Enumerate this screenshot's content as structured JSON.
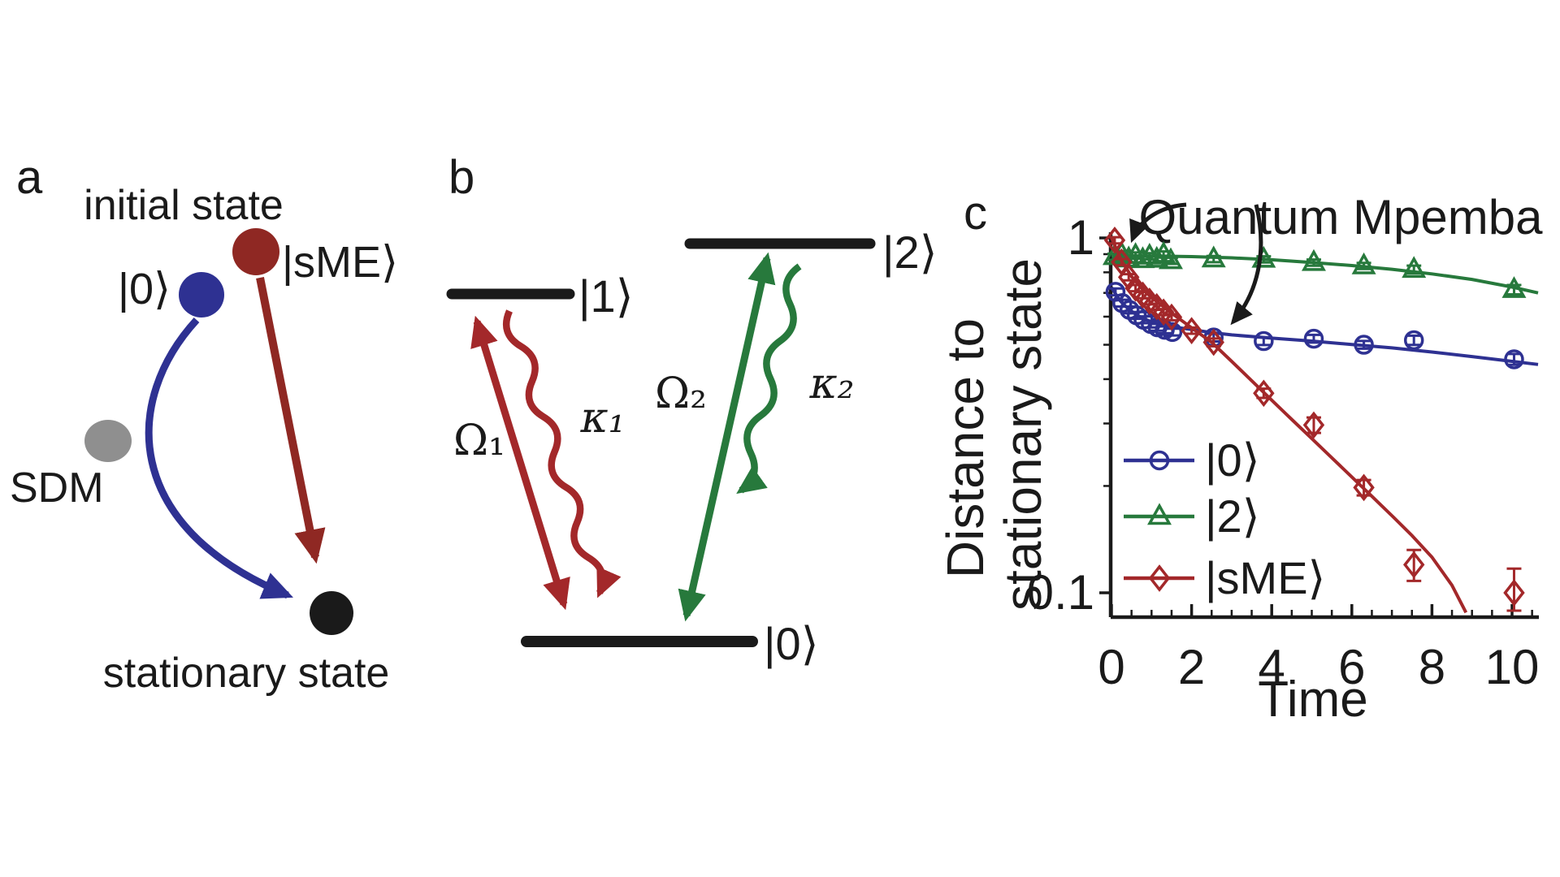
{
  "colors": {
    "blue": "#2e3192",
    "green": "#27793c",
    "red": "#a3282a",
    "dark_red": "#8f2823",
    "gray": "#8f8f8f",
    "black": "#1a1a1a"
  },
  "panel_a": {
    "label": "a",
    "initial_state": "initial state",
    "stationary_state": "stationary state",
    "sme": "|sME⟩",
    "ket0": "|0⟩",
    "sdm": "SDM"
  },
  "panel_b": {
    "label": "b",
    "level0": "|0⟩",
    "level1": "|1⟩",
    "level2": "|2⟩",
    "omega1": "Ω₁",
    "kappa1": "κ₁",
    "omega2": "Ω₂",
    "kappa2": "κ₂"
  },
  "panel_c": {
    "label": "c"
  },
  "chart_data": {
    "type": "line",
    "annotation": "Quantum Mpemba",
    "xlabel": "Time",
    "ylabel": "Distance to stationary state",
    "ylabel_lines": [
      "Distance to",
      "stationary state"
    ],
    "yscale": "log",
    "xlim": [
      0,
      10.65
    ],
    "ylim": [
      0.085,
      1.04
    ],
    "xticks": [
      0,
      2,
      4,
      6,
      8,
      10
    ],
    "x_minor_step": 0.5,
    "ytick_labels": [
      {
        "value": 1,
        "label": "1"
      },
      {
        "value": 0.1,
        "label": "0.1"
      }
    ],
    "y_minor": [
      0.9,
      0.8,
      0.7,
      0.6,
      0.5,
      0.4,
      0.3,
      0.2
    ],
    "grid": false,
    "legend_position": "inside bottom-left",
    "series": [
      {
        "name": "|0⟩",
        "marker": "circle",
        "color": "#2e3192",
        "points": {
          "t": [
            0.1,
            0.27,
            0.45,
            0.63,
            0.8,
            0.98,
            1.15,
            1.33,
            1.52,
            2.55,
            3.8,
            5.05,
            6.3,
            7.55,
            10.05
          ],
          "v": [
            0.705,
            0.655,
            0.627,
            0.605,
            0.588,
            0.572,
            0.56,
            0.551,
            0.543,
            0.524,
            0.512,
            0.52,
            0.5,
            0.515,
            0.455
          ],
          "err": [
            0.022,
            0.022,
            0.022,
            0.022,
            0.022,
            0.022,
            0.022,
            0.022,
            0.022,
            0.025,
            0.025,
            0.025,
            0.025,
            0.03,
            0.035
          ]
        },
        "line": {
          "t": [
            0,
            0.2,
            0.4,
            0.6,
            0.8,
            1.0,
            1.3,
            1.6,
            2.0,
            2.5,
            3.0,
            4.0,
            5.0,
            6.0,
            7.0,
            8.0,
            9.0,
            10.0,
            10.65
          ],
          "v": [
            0.725,
            0.668,
            0.634,
            0.61,
            0.592,
            0.58,
            0.568,
            0.56,
            0.552,
            0.541,
            0.533,
            0.522,
            0.512,
            0.501,
            0.49,
            0.477,
            0.463,
            0.449,
            0.44
          ]
        }
      },
      {
        "name": "|2⟩",
        "marker": "triangle",
        "color": "#27793c",
        "points": {
          "t": [
            0.08,
            0.25,
            0.43,
            0.6,
            0.78,
            0.95,
            1.13,
            1.3,
            1.48,
            2.55,
            3.8,
            5.05,
            6.3,
            7.55,
            10.05
          ],
          "v": [
            0.885,
            0.9,
            0.872,
            0.892,
            0.868,
            0.888,
            0.87,
            0.898,
            0.862,
            0.872,
            0.87,
            0.852,
            0.834,
            0.815,
            0.715
          ],
          "err": [
            0.02,
            0.02,
            0.02,
            0.02,
            0.02,
            0.02,
            0.02,
            0.02,
            0.02,
            0.02,
            0.02,
            0.02,
            0.02,
            0.025,
            0.03
          ]
        },
        "line": {
          "t": [
            0,
            1,
            2,
            3,
            4,
            5,
            6,
            7,
            8,
            9,
            10,
            10.65
          ],
          "v": [
            0.891,
            0.889,
            0.886,
            0.879,
            0.868,
            0.853,
            0.836,
            0.816,
            0.792,
            0.764,
            0.727,
            0.7
          ]
        }
      },
      {
        "name": "|sME⟩",
        "marker": "diamond",
        "color": "#a3282a",
        "points": {
          "t": [
            0.08,
            0.25,
            0.43,
            0.6,
            0.78,
            0.95,
            1.13,
            1.3,
            1.5,
            2.0,
            2.55,
            3.8,
            5.05,
            6.3,
            7.55,
            10.05
          ],
          "v": [
            0.985,
            0.855,
            0.775,
            0.722,
            0.69,
            0.663,
            0.64,
            0.618,
            0.598,
            0.548,
            0.508,
            0.365,
            0.297,
            0.198,
            0.12,
            0.1
          ],
          "err": [
            0.02,
            0.02,
            0.02,
            0.02,
            0.02,
            0.02,
            0.02,
            0.02,
            0.02,
            0.02,
            0.025,
            0.03,
            0.05,
            0.05,
            0.1,
            0.17
          ]
        },
        "line": {
          "t": [
            0,
            0.25,
            0.5,
            0.75,
            1.0,
            1.5,
            2.0,
            2.5,
            3.0,
            3.5,
            4.0,
            4.5,
            5.0,
            5.5,
            6.0,
            6.5,
            7.0,
            7.5,
            8.0,
            8.5,
            8.85
          ],
          "v": [
            1.0,
            0.862,
            0.778,
            0.722,
            0.68,
            0.614,
            0.558,
            0.508,
            0.449,
            0.396,
            0.349,
            0.308,
            0.272,
            0.24,
            0.212,
            0.187,
            0.165,
            0.145,
            0.126,
            0.105,
            0.088
          ]
        }
      }
    ]
  }
}
